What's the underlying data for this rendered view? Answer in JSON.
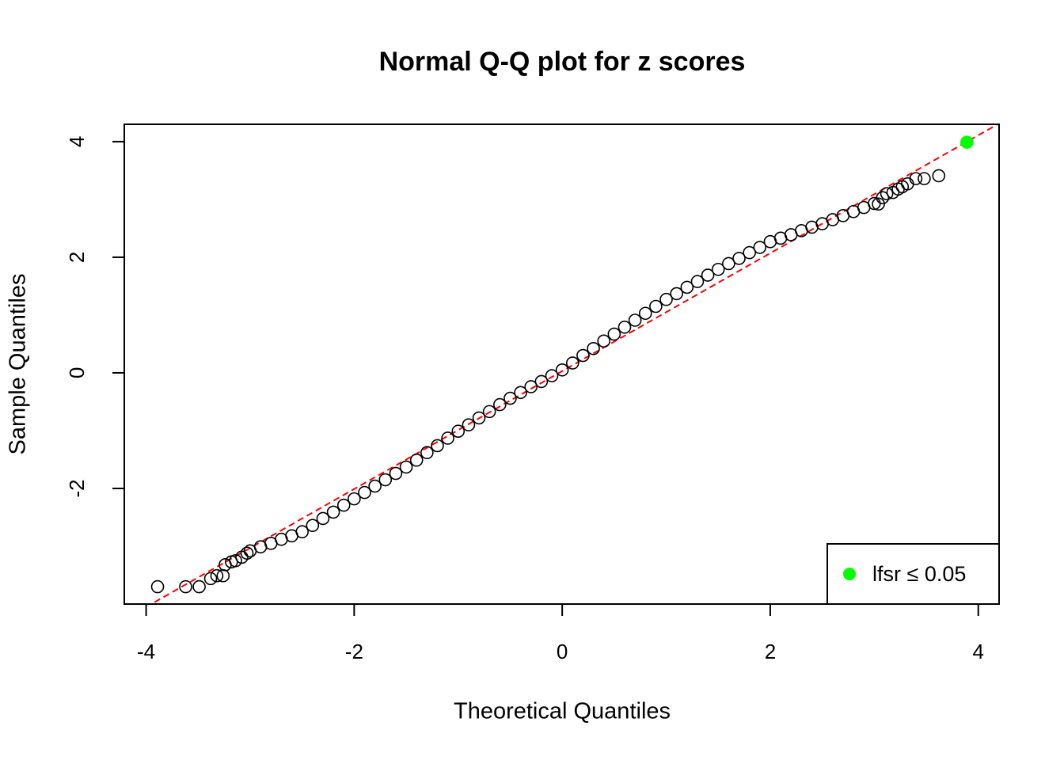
{
  "chart_data": {
    "type": "scatter",
    "title": "Normal Q-Q plot for z scores",
    "x_label": "Theoretical Quantiles",
    "y_label": "Sample Quantiles",
    "xlim": [
      -4.21,
      4.2
    ],
    "ylim": [
      -4.0,
      4.3
    ],
    "xticks": [
      -4,
      -2,
      0,
      2,
      4
    ],
    "yticks": [
      -2,
      0,
      2,
      4
    ],
    "grid": false,
    "legend": "bottom-right",
    "qq_line": {
      "intercept": 0.03,
      "slope": 1.02,
      "color": "#ff0000"
    },
    "series": [
      {
        "color": "#000000",
        "x": [
          -3.89,
          -3.62,
          -3.49,
          -3.38,
          -3.32,
          -3.26,
          -3.24,
          -3.18,
          -3.14,
          -3.08,
          -3.03,
          -3.0,
          -2.9,
          -2.8,
          -2.7,
          -2.6,
          -2.5,
          -2.4,
          -2.3,
          -2.2,
          -2.1,
          -2.0,
          -1.9,
          -1.8,
          -1.7,
          -1.6,
          -1.5,
          -1.4,
          -1.3,
          -1.2,
          -1.1,
          -1.0,
          -0.9,
          -0.8,
          -0.7,
          -0.6,
          -0.5,
          -0.4,
          -0.3,
          -0.2,
          -0.1,
          0,
          0.1,
          0.2,
          0.3,
          0.4,
          0.5,
          0.6,
          0.7,
          0.8,
          0.9,
          1.0,
          1.1,
          1.2,
          1.3,
          1.4,
          1.5,
          1.6,
          1.7,
          1.8,
          1.9,
          2.0,
          2.1,
          2.2,
          2.3,
          2.4,
          2.5,
          2.6,
          2.7,
          2.8,
          2.9,
          3.0,
          3.04,
          3.08,
          3.12,
          3.18,
          3.23,
          3.27,
          3.32,
          3.4,
          3.48,
          3.62
        ],
        "values": [
          -3.7,
          -3.7,
          -3.7,
          -3.56,
          -3.51,
          -3.51,
          -3.32,
          -3.27,
          -3.25,
          -3.19,
          -3.12,
          -3.08,
          -3.01,
          -2.95,
          -2.88,
          -2.82,
          -2.75,
          -2.64,
          -2.52,
          -2.41,
          -2.29,
          -2.18,
          -2.07,
          -1.96,
          -1.85,
          -1.74,
          -1.63,
          -1.51,
          -1.38,
          -1.26,
          -1.13,
          -1.01,
          -0.9,
          -0.78,
          -0.67,
          -0.55,
          -0.44,
          -0.34,
          -0.24,
          -0.15,
          -0.05,
          0.05,
          0.17,
          0.3,
          0.42,
          0.55,
          0.67,
          0.79,
          0.91,
          1.03,
          1.15,
          1.27,
          1.37,
          1.48,
          1.58,
          1.69,
          1.79,
          1.89,
          1.98,
          2.08,
          2.17,
          2.27,
          2.33,
          2.39,
          2.46,
          2.52,
          2.58,
          2.65,
          2.72,
          2.79,
          2.86,
          2.93,
          2.92,
          3.03,
          3.1,
          3.12,
          3.18,
          3.22,
          3.27,
          3.36,
          3.36,
          3.41
        ]
      },
      {
        "name": "lfsr ≤ 0.05",
        "color": "#00ff00",
        "filled": true,
        "x": [
          3.89
        ],
        "values": [
          3.99
        ]
      }
    ]
  }
}
